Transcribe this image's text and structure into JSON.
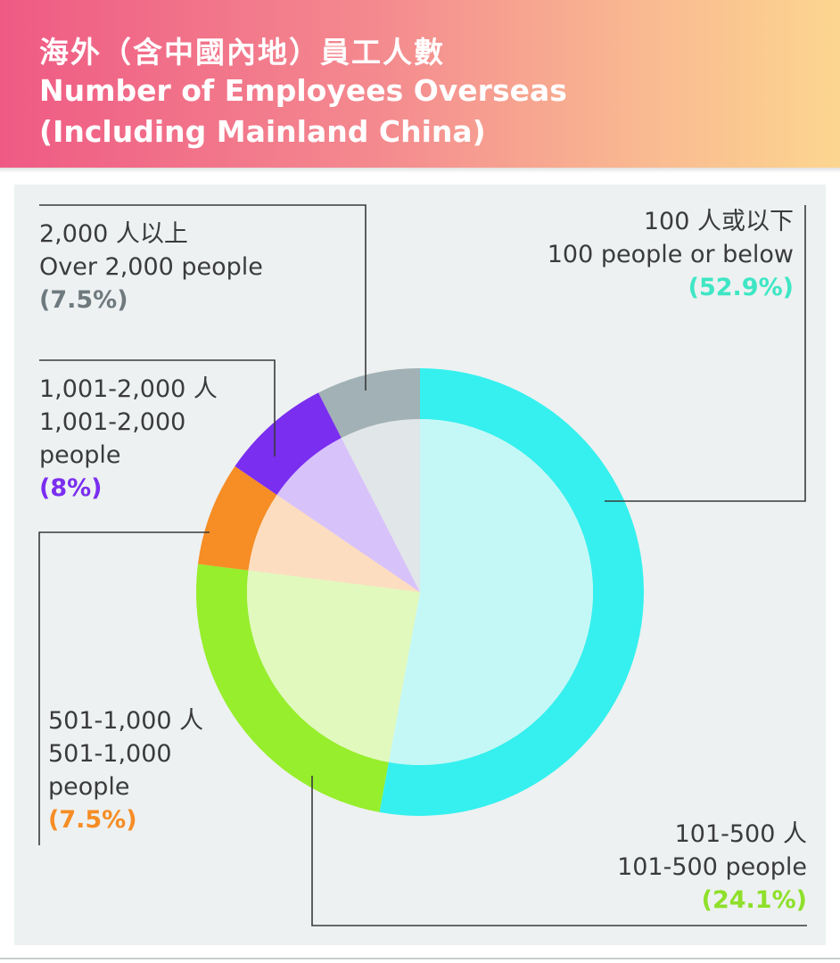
{
  "header": {
    "title_zh": "海外（含中國內地）員工人數",
    "title_en_line1": "Number of Employees Overseas",
    "title_en_line2": "(Including Mainland China)"
  },
  "chart_data": {
    "type": "pie",
    "title": "海外（含中國內地）員工人數 Number of Employees Overseas (Including Mainland China)",
    "slices": [
      {
        "zh": "100 人或以下",
        "en": "100 people or below",
        "en_lines": [
          "100 people or below"
        ],
        "value": 52.9,
        "pct": "(52.9%)",
        "color": "#35f0ee",
        "light": "#c4f8f7",
        "text_color": "#3ee6c4"
      },
      {
        "zh": "101-500 人",
        "en": "101-500 people",
        "en_lines": [
          "101-500 people"
        ],
        "value": 24.1,
        "pct": "(24.1%)",
        "color": "#97ee2c",
        "light": "#e1f9bd",
        "text_color": "#8ee02a"
      },
      {
        "zh": "501-1,000 人",
        "en": "501-1,000 people",
        "en_lines": [
          "501-1,000",
          "people"
        ],
        "value": 7.5,
        "pct": "(7.5%)",
        "color": "#f68d25",
        "light": "#fdddbf",
        "text_color": "#f68d25"
      },
      {
        "zh": "1,001-2,000 人",
        "en": "1,001-2,000 people",
        "en_lines": [
          "1,001-2,000",
          "people"
        ],
        "value": 8,
        "pct": "(8%)",
        "color": "#7a2ef0",
        "light": "#d8c2fa",
        "text_color": "#7a2ef0"
      },
      {
        "zh": "2,000 人以上",
        "en": "Over 2,000 people",
        "en_lines": [
          "Over 2,000 people"
        ],
        "value": 7.5,
        "pct": "(7.5%)",
        "color": "#a2b1b5",
        "light": "#e1e6e8",
        "text_color": "#6f7a7f"
      }
    ]
  }
}
